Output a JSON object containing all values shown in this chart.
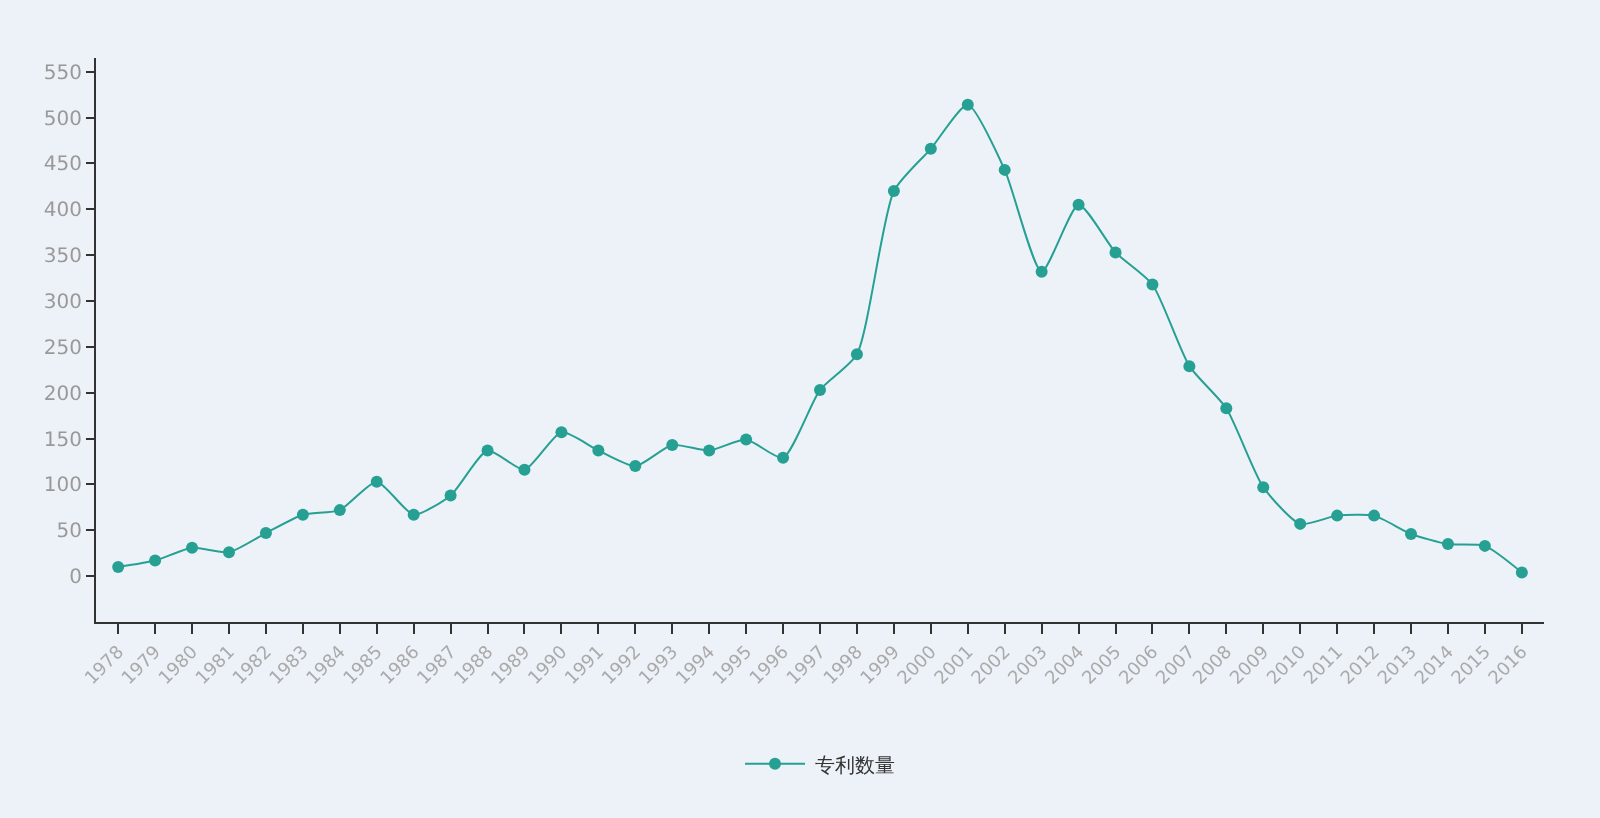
{
  "chart_data": {
    "type": "line",
    "categories": [
      "1978",
      "1979",
      "1980",
      "1981",
      "1982",
      "1983",
      "1984",
      "1985",
      "1986",
      "1987",
      "1988",
      "1989",
      "1990",
      "1991",
      "1992",
      "1993",
      "1994",
      "1995",
      "1996",
      "1997",
      "1998",
      "1999",
      "2000",
      "2001",
      "2002",
      "2003",
      "2004",
      "2005",
      "2006",
      "2007",
      "2008",
      "2009",
      "2010",
      "2011",
      "2012",
      "2013",
      "2014",
      "2015",
      "2016"
    ],
    "series": [
      {
        "name": "专利数量",
        "color": "#26a092",
        "values": [
          10,
          17,
          31,
          26,
          47,
          67,
          72,
          103,
          67,
          88,
          137,
          116,
          157,
          137,
          120,
          143,
          137,
          149,
          129,
          203,
          242,
          420,
          466,
          514,
          443,
          332,
          405,
          353,
          318,
          229,
          183,
          97,
          57,
          66,
          66,
          46,
          35,
          33,
          4
        ]
      }
    ],
    "ylim": [
      -50,
      565
    ],
    "yticks": [
      0,
      50,
      100,
      150,
      200,
      250,
      300,
      350,
      400,
      450,
      500,
      550
    ],
    "grid": false,
    "legend": "bottom",
    "marker": "circle",
    "line_style": "solid"
  }
}
